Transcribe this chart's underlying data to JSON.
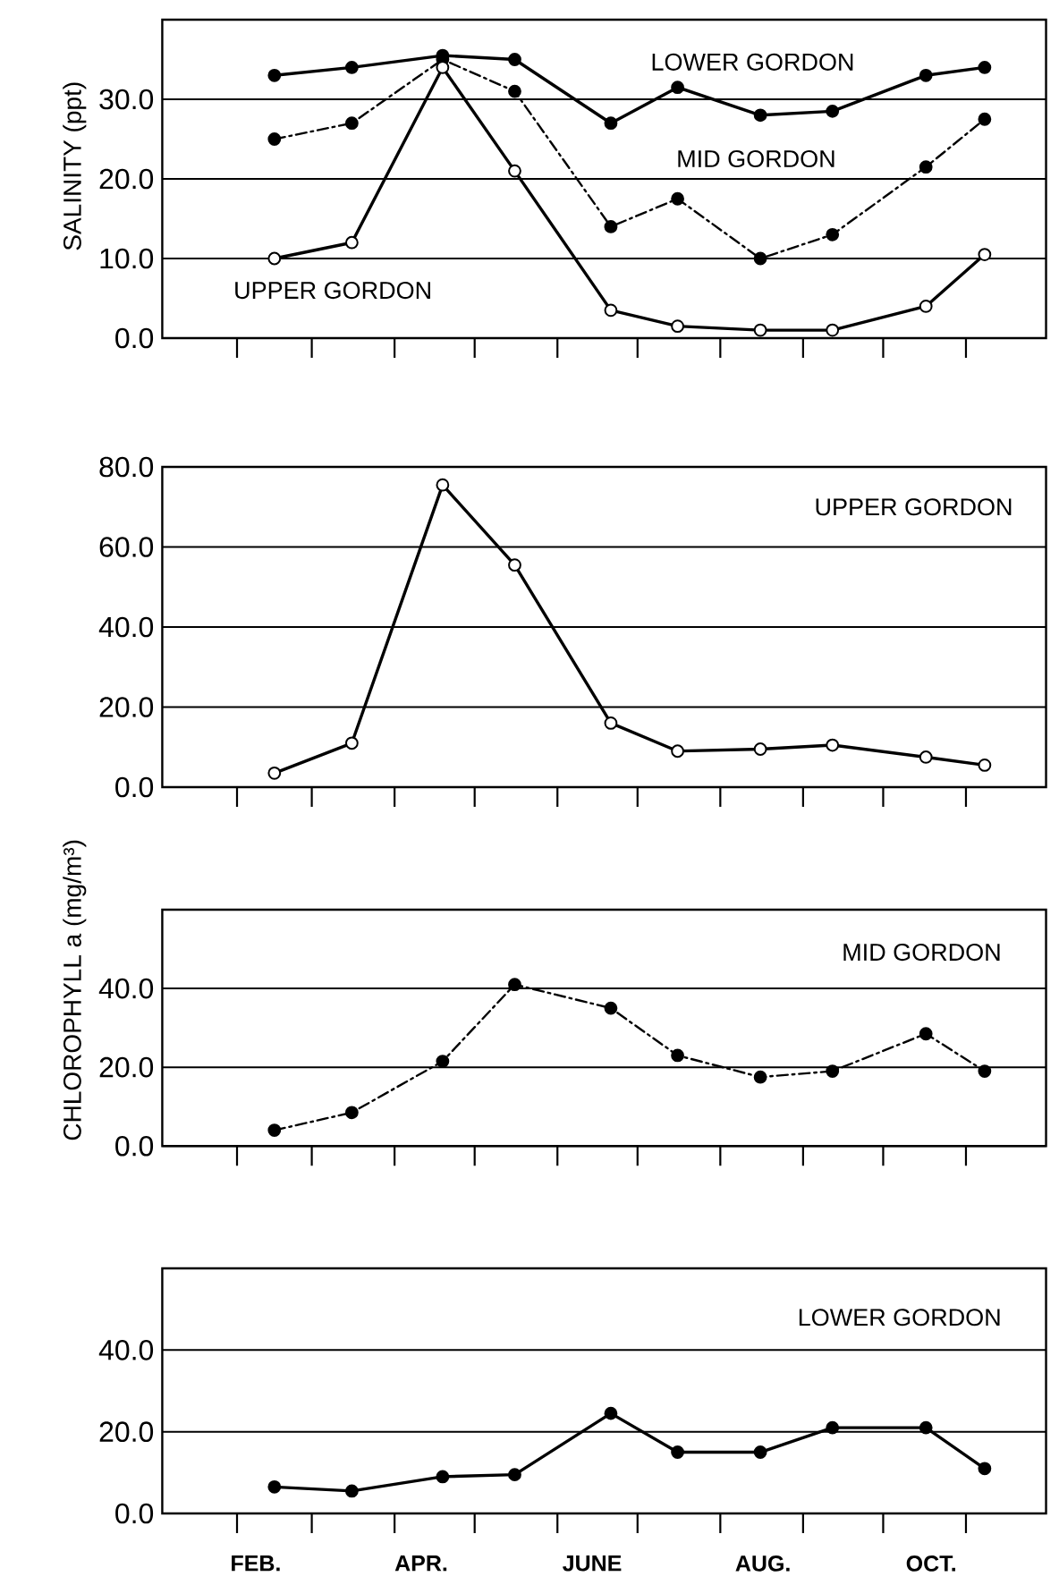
{
  "chart_data": [
    {
      "type": "line",
      "ylabel": "SALINITY (ppt)",
      "x": [
        "--02-15",
        "--03-16",
        "--04-19",
        "--05-16",
        "--06-21",
        "--07-16",
        "--08-16",
        "--09-12",
        "--10-17",
        "--11-08"
      ],
      "xlim": [
        "--01-04",
        "--12-01"
      ],
      "xticks": [
        {
          "value": "--02-01",
          "label": null
        },
        {
          "value": "--03-01",
          "label": null
        },
        {
          "value": "--04-01",
          "label": null
        },
        {
          "value": "--05-01",
          "label": null
        },
        {
          "value": "--06-01",
          "label": null
        },
        {
          "value": "--07-01",
          "label": null
        },
        {
          "value": "--08-01",
          "label": null
        },
        {
          "value": "--09-01",
          "label": null
        },
        {
          "value": "--10-01",
          "label": null
        },
        {
          "value": "--11-01",
          "label": null
        }
      ],
      "ylim": [
        0,
        40
      ],
      "yticks": [
        {
          "value": 0,
          "label": "0.0"
        },
        {
          "value": 10,
          "label": "10.0"
        },
        {
          "value": 20,
          "label": "20.0"
        },
        {
          "value": 30,
          "label": "30.0"
        }
      ],
      "grid": "y",
      "tick_labels": "y",
      "marker": "circle",
      "series": [
        {
          "name": "LOWER GORDON",
          "color": "#000000",
          "line_style": "solid",
          "values": [
            33,
            34,
            35.5,
            35,
            27,
            31.5,
            28,
            28.5,
            33,
            34
          ]
        },
        {
          "name": "MID GORDON",
          "color": "#000000",
          "line_style": "dashed",
          "values": [
            25,
            27,
            35,
            31,
            14,
            17.5,
            10,
            13,
            21.5,
            27.5
          ]
        },
        {
          "name": "UPPER GORDON",
          "color": "#000000",
          "colors": [
            "#ffffff",
            "#ffffff",
            "#ffffff",
            "#ffffff",
            "#ffffff",
            "#ffffff",
            "#ffffff",
            "#ffffff",
            "#ffffff",
            "#ffffff"
          ],
          "line_style": "solid",
          "values": [
            10,
            12,
            34,
            21,
            3.5,
            1.5,
            1,
            1,
            4,
            10.5
          ]
        }
      ]
    },
    {
      "type": "line",
      "x": [
        "--02-15",
        "--03-16",
        "--04-19",
        "--05-16",
        "--06-21",
        "--07-16",
        "--08-16",
        "--09-12",
        "--10-17",
        "--11-08"
      ],
      "xlim": [
        "--01-04",
        "--12-01"
      ],
      "xticks": [
        {
          "value": "--02-01",
          "label": null
        },
        {
          "value": "--03-01",
          "label": null
        },
        {
          "value": "--04-01",
          "label": null
        },
        {
          "value": "--05-01",
          "label": null
        },
        {
          "value": "--06-01",
          "label": null
        },
        {
          "value": "--07-01",
          "label": null
        },
        {
          "value": "--08-01",
          "label": null
        },
        {
          "value": "--09-01",
          "label": null
        },
        {
          "value": "--10-01",
          "label": null
        },
        {
          "value": "--11-01",
          "label": null
        }
      ],
      "ylim": [
        0,
        80
      ],
      "yticks": [
        {
          "value": 0,
          "label": "0.0"
        },
        {
          "value": 20,
          "label": "20.0"
        },
        {
          "value": 40,
          "label": "40.0"
        },
        {
          "value": 60,
          "label": "60.0"
        },
        {
          "value": 80,
          "label": "80.0"
        }
      ],
      "grid": "y",
      "tick_labels": "y",
      "marker": "circle",
      "series": [
        {
          "name": "UPPER GORDON",
          "color": "#000000",
          "colors": [
            "#ffffff",
            "#ffffff",
            "#ffffff",
            "#ffffff",
            "#ffffff",
            "#ffffff",
            "#ffffff",
            "#ffffff",
            "#ffffff",
            "#ffffff"
          ],
          "line_style": "solid",
          "values": [
            3.5,
            11,
            75.5,
            55.5,
            16,
            9,
            9.5,
            10.5,
            7.5,
            5.5
          ]
        }
      ]
    },
    {
      "type": "line",
      "ylabel": "CHLOROPHYLL a (mg/m³)",
      "x": [
        "--02-15",
        "--03-16",
        "--04-19",
        "--05-16",
        "--06-21",
        "--07-16",
        "--08-16",
        "--09-12",
        "--10-17",
        "--11-08"
      ],
      "xlim": [
        "--01-04",
        "--12-01"
      ],
      "xticks": [
        {
          "value": "--02-01",
          "label": null
        },
        {
          "value": "--03-01",
          "label": null
        },
        {
          "value": "--04-01",
          "label": null
        },
        {
          "value": "--05-01",
          "label": null
        },
        {
          "value": "--06-01",
          "label": null
        },
        {
          "value": "--07-01",
          "label": null
        },
        {
          "value": "--08-01",
          "label": null
        },
        {
          "value": "--09-01",
          "label": null
        },
        {
          "value": "--10-01",
          "label": null
        },
        {
          "value": "--11-01",
          "label": null
        }
      ],
      "ylim": [
        0,
        60
      ],
      "yticks": [
        {
          "value": 0,
          "label": "0.0"
        },
        {
          "value": 20,
          "label": "20.0"
        },
        {
          "value": 40,
          "label": "40.0"
        }
      ],
      "grid": "y",
      "tick_labels": "y",
      "marker": "circle",
      "series": [
        {
          "name": "MID GORDON",
          "color": "#000000",
          "line_style": "dashed",
          "values": [
            4,
            8.5,
            21.5,
            41,
            35,
            23,
            17.5,
            19,
            28.5,
            19
          ]
        }
      ]
    },
    {
      "type": "line",
      "x": [
        "--02-15",
        "--03-16",
        "--04-19",
        "--05-16",
        "--06-21",
        "--07-16",
        "--08-16",
        "--09-12",
        "--10-17",
        "--11-08"
      ],
      "xlim": [
        "--01-04",
        "--12-01"
      ],
      "xticks": [
        {
          "value": "--02-01",
          "label": null
        },
        {
          "value": "--02-08",
          "label": "FEB."
        },
        {
          "value": "--03-01",
          "label": null
        },
        {
          "value": "--04-01",
          "label": null
        },
        {
          "value": "--04-11",
          "label": "APR."
        },
        {
          "value": "--05-01",
          "label": null
        },
        {
          "value": "--06-01",
          "label": null
        },
        {
          "value": "--06-14",
          "label": "JUNE"
        },
        {
          "value": "--07-01",
          "label": null
        },
        {
          "value": "--08-01",
          "label": null
        },
        {
          "value": "--08-17",
          "label": "AUG."
        },
        {
          "value": "--09-01",
          "label": null
        },
        {
          "value": "--10-01",
          "label": null
        },
        {
          "value": "--10-19",
          "label": "OCT."
        },
        {
          "value": "--11-01",
          "label": null
        }
      ],
      "ylim": [
        0,
        60
      ],
      "yticks": [
        {
          "value": 0,
          "label": "0.0"
        },
        {
          "value": 20,
          "label": "20.0"
        },
        {
          "value": 40,
          "label": "40.0"
        }
      ],
      "grid": "y",
      "marker": "circle",
      "series": [
        {
          "name": "LOWER GORDON",
          "color": "#000000",
          "line_style": "solid",
          "values": [
            6.5,
            5.5,
            9,
            9.5,
            24.5,
            15,
            15,
            21,
            21,
            11
          ]
        }
      ]
    }
  ]
}
